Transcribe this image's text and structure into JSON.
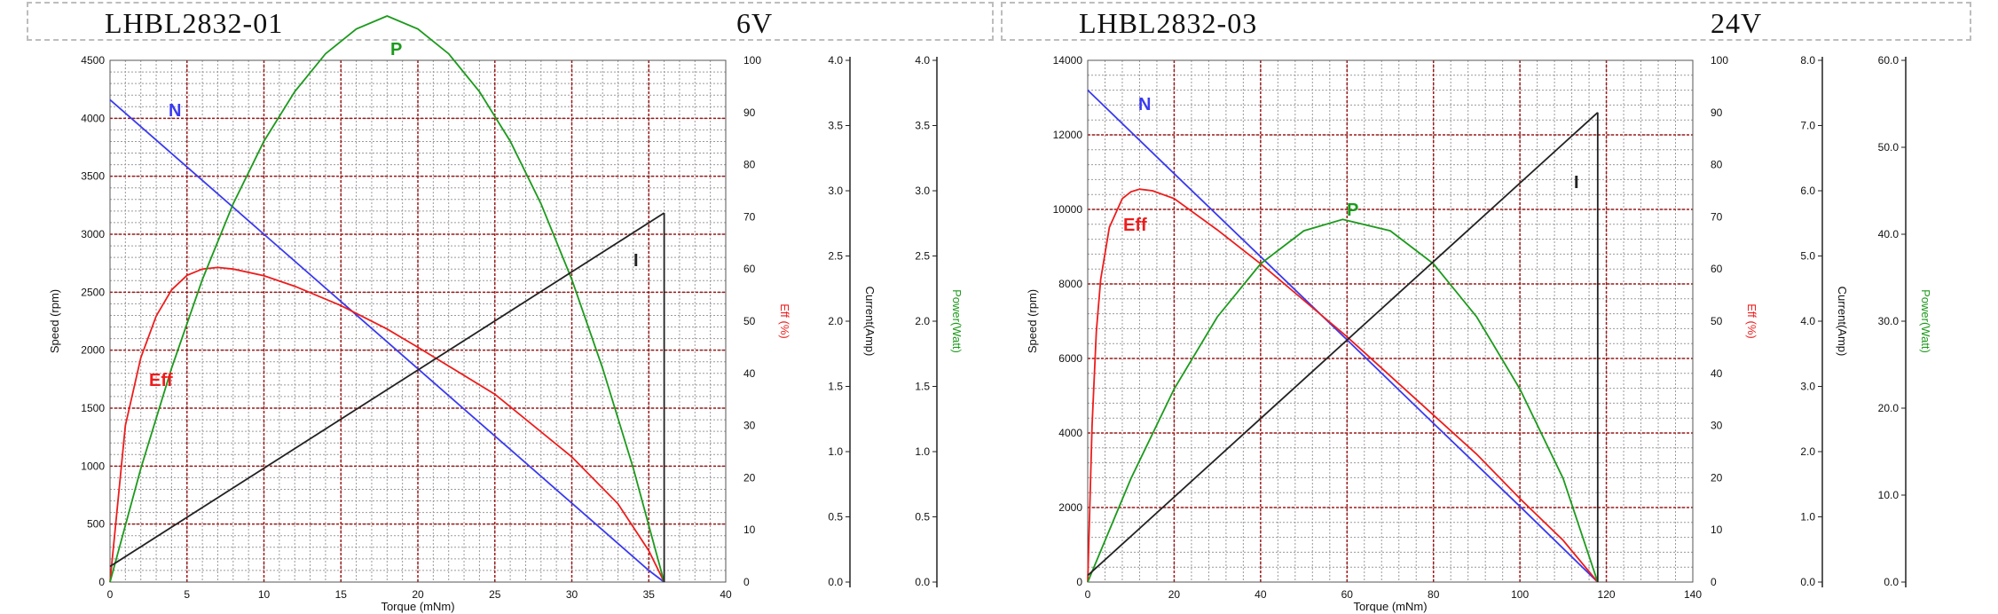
{
  "panels": [
    {
      "title": "LHBL2832-01",
      "voltage": "6V"
    },
    {
      "title": "LHBL2832-03",
      "voltage": "24V"
    }
  ],
  "colors": {
    "speed": "#3a3af0",
    "eff": "#ee1c1c",
    "power": "#1c9a1c",
    "current": "#222222"
  },
  "chart_data": [
    {
      "type": "line",
      "title": "LHBL2832-01 6V",
      "xlabel": "Torque (mNm)",
      "ylabel": "Speed (rpm)",
      "y2label": "Eff (%)",
      "y3label": "Current(Amp)",
      "y4label": "Power(Watt)",
      "xlim": [
        0,
        40
      ],
      "ylim": [
        0,
        4500
      ],
      "y2lim": [
        0,
        100
      ],
      "y3lim": [
        0,
        4.0
      ],
      "y4lim": [
        0,
        4.0
      ],
      "xticks": [
        "0",
        "5",
        "10",
        "15",
        "20",
        "25",
        "30",
        "35",
        "40"
      ],
      "yticks": [
        "0",
        "500",
        "1000",
        "1500",
        "2000",
        "2500",
        "3000",
        "3500",
        "4000",
        "4500"
      ],
      "y2ticks": [
        "0",
        "10",
        "20",
        "30",
        "40",
        "50",
        "60",
        "70",
        "80",
        "90",
        "100"
      ],
      "y3ticks": [
        "0.0",
        "0.5",
        "1.0",
        "1.5",
        "2.0",
        "2.5",
        "3.0",
        "3.5",
        "4.0"
      ],
      "y4ticks": [
        "0.0",
        "0.5",
        "1.0",
        "1.5",
        "2.0",
        "2.5",
        "3.0",
        "3.5",
        "4.0"
      ],
      "grid": true,
      "annotations": [
        "N",
        "Eff",
        "P",
        "I"
      ],
      "series": [
        {
          "name": "N",
          "axis": "speed",
          "x": [
            0,
            5,
            10,
            15,
            20,
            25,
            30,
            35,
            36
          ],
          "y": [
            4160,
            3580,
            3000,
            2420,
            1840,
            1260,
            680,
            100,
            0
          ]
        },
        {
          "name": "Eff",
          "axis": "eff",
          "x": [
            0,
            1,
            2,
            3,
            4,
            5,
            6,
            7,
            8,
            10,
            12,
            15,
            18,
            20,
            25,
            30,
            33,
            35,
            36
          ],
          "y": [
            0,
            30,
            43,
            51,
            56,
            58.8,
            60,
            60.3,
            60,
            58.7,
            56.7,
            53,
            48.5,
            45,
            36,
            24,
            15,
            6,
            0
          ]
        },
        {
          "name": "P",
          "axis": "power",
          "x": [
            0,
            2,
            4,
            6,
            8,
            10,
            12,
            14,
            16,
            18,
            20,
            22,
            24,
            26,
            28,
            30,
            32,
            34,
            36
          ],
          "y": [
            0,
            0.87,
            1.64,
            2.32,
            2.9,
            3.38,
            3.76,
            4.05,
            4.24,
            4.34,
            4.24,
            4.05,
            3.76,
            3.38,
            2.9,
            2.32,
            1.64,
            0.87,
            0
          ]
        },
        {
          "name": "I",
          "axis": "current",
          "x": [
            0,
            36
          ],
          "y": [
            0.12,
            2.83
          ]
        }
      ]
    },
    {
      "type": "line",
      "title": "LHBL2832-03 24V",
      "xlabel": "Torque (mNm)",
      "ylabel": "Speed (rpm)",
      "y2label": "Eff (%)",
      "y3label": "Current(Amp)",
      "y4label": "Power(Watt)",
      "xlim": [
        0,
        140
      ],
      "ylim": [
        0,
        14000
      ],
      "y2lim": [
        0,
        100
      ],
      "y3lim": [
        0,
        8.0
      ],
      "y4lim": [
        0,
        60.0
      ],
      "xticks": [
        "0",
        "20",
        "40",
        "60",
        "80",
        "100",
        "120",
        "140"
      ],
      "yticks": [
        "0",
        "2000",
        "4000",
        "6000",
        "8000",
        "10000",
        "12000",
        "14000"
      ],
      "y2ticks": [
        "0",
        "10",
        "20",
        "30",
        "40",
        "50",
        "60",
        "70",
        "80",
        "90",
        "100"
      ],
      "y3ticks": [
        "0.0",
        "1.0",
        "2.0",
        "3.0",
        "4.0",
        "5.0",
        "6.0",
        "7.0",
        "8.0"
      ],
      "y4ticks": [
        "0.0",
        "10.0",
        "20.0",
        "30.0",
        "40.0",
        "50.0",
        "60.0"
      ],
      "grid": true,
      "annotations": [
        "N",
        "Eff",
        "P",
        "I"
      ],
      "series": [
        {
          "name": "N",
          "axis": "speed",
          "x": [
            0,
            20,
            40,
            60,
            80,
            100,
            118
          ],
          "y": [
            13200,
            10960,
            8730,
            6500,
            4260,
            2030,
            0
          ]
        },
        {
          "name": "Eff",
          "axis": "eff",
          "x": [
            0,
            1,
            2,
            3,
            5,
            8,
            10,
            12,
            15,
            20,
            30,
            40,
            50,
            60,
            70,
            80,
            90,
            100,
            110,
            118
          ],
          "y": [
            0,
            30,
            48,
            58,
            68,
            73.5,
            74.8,
            75.3,
            75,
            73.5,
            67.5,
            61,
            54,
            47,
            39.5,
            32,
            24.5,
            16,
            8,
            0
          ]
        },
        {
          "name": "P",
          "axis": "power",
          "x": [
            0,
            10,
            20,
            30,
            40,
            50,
            59,
            70,
            80,
            90,
            100,
            110,
            118
          ],
          "y": [
            0,
            11.9,
            22.2,
            30.5,
            36.6,
            40.4,
            41.7,
            40.4,
            36.6,
            30.5,
            22.2,
            11.9,
            0
          ]
        },
        {
          "name": "I",
          "axis": "current",
          "x": [
            0,
            118
          ],
          "y": [
            0.1,
            7.2
          ]
        }
      ]
    }
  ]
}
